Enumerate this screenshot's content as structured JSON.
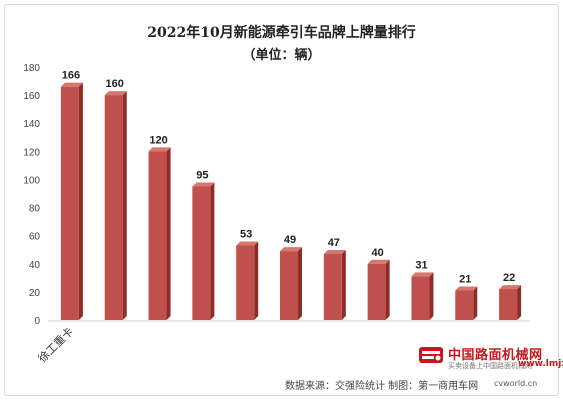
{
  "title": "2022年10月新能源牵引车品牌上牌量排行",
  "subtitle": "（单位：辆）",
  "chart_data": {
    "type": "bar",
    "categories": [
      "徐工重卡",
      "",
      "",
      "",
      "",
      "",
      "",
      "",
      "",
      "",
      ""
    ],
    "values": [
      166,
      160,
      120,
      95,
      53,
      49,
      47,
      40,
      31,
      21,
      22
    ],
    "ylim": [
      0,
      180
    ],
    "yticks": [
      0,
      20,
      40,
      60,
      80,
      100,
      120,
      140,
      160,
      180
    ],
    "grid": false,
    "legend": "none",
    "bar_color": "#c0504d",
    "bar_top_color": "#d9776f",
    "bar_side_color": "#8e2c28"
  },
  "source_note": "数据来源：交强险统计  制图：第一商用车网",
  "watermark": {
    "cn": "中国路面机械网",
    "sub": "买卖设备上中国路面机械网",
    "url": "www.lmjx.net",
    "extra": "cvworld.cn"
  }
}
